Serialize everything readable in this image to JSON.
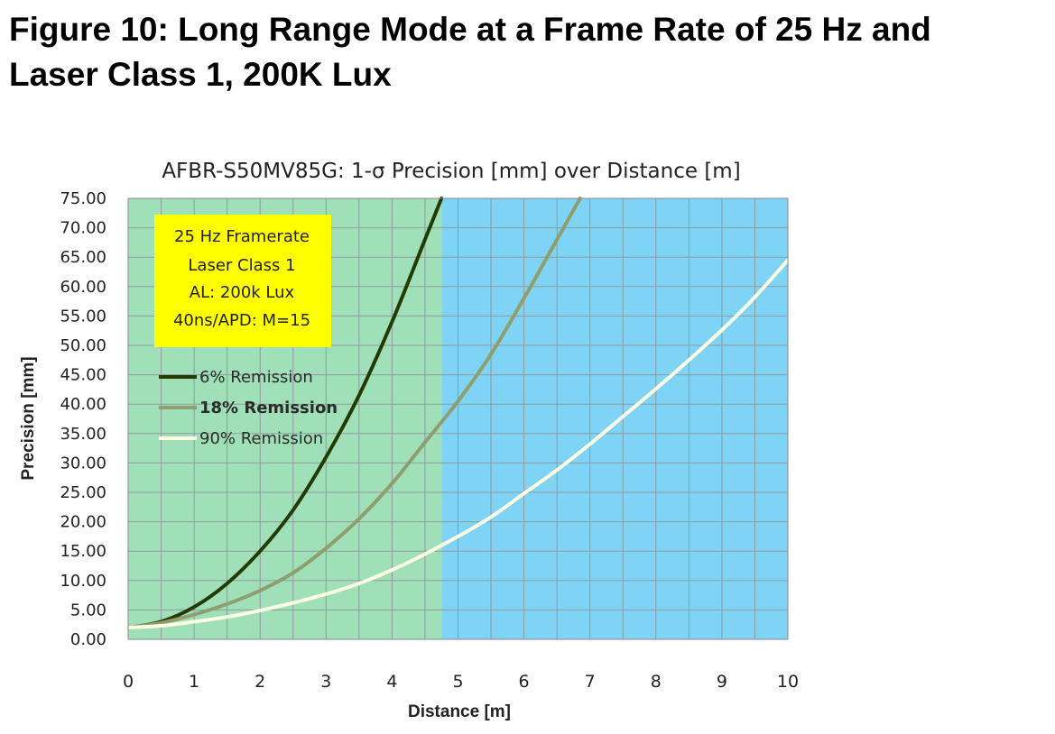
{
  "figure": {
    "title_line1": "Figure 10:  Long Range Mode at a Frame Rate of 25 Hz and",
    "title_line2": "Laser Class 1, 200K Lux"
  },
  "chart_data": {
    "type": "line",
    "title": "AFBR-S50MV85G: 1-σ Precision [mm] over Distance [m]",
    "xlabel": "Distance [m]",
    "ylabel": "Precision [mm]",
    "xlim": [
      0,
      10
    ],
    "ylim": [
      0,
      75
    ],
    "x_ticks": [
      "0",
      "1",
      "2",
      "3",
      "4",
      "5",
      "6",
      "7",
      "8",
      "9",
      "10"
    ],
    "y_ticks": [
      "0.00",
      "5.00",
      "10.00",
      "15.00",
      "20.00",
      "25.00",
      "30.00",
      "35.00",
      "40.00",
      "45.00",
      "50.00",
      "55.00",
      "60.00",
      "65.00",
      "70.00",
      "75.00"
    ],
    "grid": true,
    "regions": [
      {
        "x_start": 0,
        "x_end": 4.75,
        "color": "#9fe0b8"
      },
      {
        "x_start": 4.75,
        "x_end": 10,
        "color": "#7fd3f4"
      }
    ],
    "annotation": [
      "25 Hz Framerate",
      "Laser Class 1",
      "AL: 200k Lux",
      "40ns/APD: M=15"
    ],
    "annotation_bg": "#ffff00",
    "series": [
      {
        "name": "6% Remission",
        "color": "#243a05",
        "bold_label": false,
        "x": [
          0,
          0.5,
          1,
          1.5,
          2,
          2.5,
          3,
          3.5,
          4,
          4.5,
          4.75
        ],
        "y": [
          2.0,
          3.0,
          5.5,
          9.5,
          15.0,
          22.0,
          31.0,
          41.5,
          54.0,
          68.0,
          75.0
        ]
      },
      {
        "name": "18% Remission",
        "color": "#8f9e6e",
        "bold_label": true,
        "x": [
          0,
          0.5,
          1,
          1.5,
          2,
          2.5,
          3,
          3.5,
          4,
          4.5,
          5,
          5.5,
          6,
          6.5,
          6.85
        ],
        "y": [
          2.0,
          2.8,
          4.2,
          6.0,
          8.3,
          11.3,
          15.5,
          20.5,
          26.5,
          33.5,
          40.5,
          48.5,
          58.0,
          68.0,
          75.0
        ]
      },
      {
        "name": "90% Remission",
        "color": "#fdfde3",
        "bold_label": false,
        "x": [
          0,
          0.5,
          1,
          1.5,
          2,
          2.5,
          3,
          3.5,
          4,
          4.5,
          5,
          5.5,
          6,
          6.5,
          7,
          7.5,
          8,
          8.5,
          9,
          9.5,
          10
        ],
        "y": [
          2.0,
          2.3,
          3.0,
          3.8,
          4.9,
          6.2,
          7.7,
          9.5,
          11.8,
          14.5,
          17.5,
          20.8,
          24.8,
          28.8,
          33.2,
          37.9,
          42.6,
          47.5,
          52.6,
          58.2,
          64.5
        ]
      }
    ]
  }
}
